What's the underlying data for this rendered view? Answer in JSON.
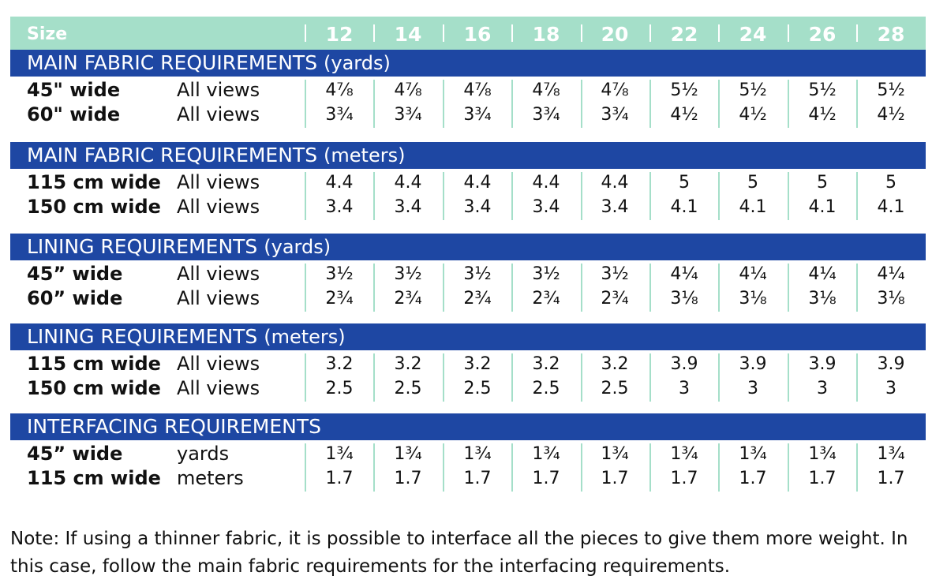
{
  "header": {
    "size_label": "Size",
    "sizes": [
      "12",
      "14",
      "16",
      "18",
      "20",
      "22",
      "24",
      "26",
      "28"
    ]
  },
  "sections": [
    {
      "title_main": "MAIN FABRIC REQUIREMENTS",
      "title_unit": "(yards)",
      "rows": [
        {
          "label": "45\" wide",
          "desc": "All views",
          "values": [
            "4⅞",
            "4⅞",
            "4⅞",
            "4⅞",
            "4⅞",
            "5½",
            "5½",
            "5½",
            "5½"
          ]
        },
        {
          "label": "60\" wide",
          "desc": "All views",
          "values": [
            "3¾",
            "3¾",
            "3¾",
            "3¾",
            "3¾",
            "4½",
            "4½",
            "4½",
            "4½"
          ]
        }
      ]
    },
    {
      "title_main": "MAIN FABRIC REQUIREMENTS",
      "title_unit": "(meters)",
      "rows": [
        {
          "label": "115 cm wide",
          "desc": "All views",
          "values": [
            "4.4",
            "4.4",
            "4.4",
            "4.4",
            "4.4",
            "5",
            "5",
            "5",
            "5"
          ]
        },
        {
          "label": "150 cm wide",
          "desc": "All views",
          "values": [
            "3.4",
            "3.4",
            "3.4",
            "3.4",
            "3.4",
            "4.1",
            "4.1",
            "4.1",
            "4.1"
          ]
        }
      ]
    },
    {
      "title_main": "LINING REQUIREMENTS",
      "title_unit": "(yards)",
      "rows": [
        {
          "label": "45” wide",
          "desc": "All views",
          "values": [
            "3½",
            "3½",
            "3½",
            "3½",
            "3½",
            "4¼",
            "4¼",
            "4¼",
            "4¼"
          ]
        },
        {
          "label": "60” wide",
          "desc": "All views",
          "values": [
            "2¾",
            "2¾",
            "2¾",
            "2¾",
            "2¾",
            "3⅛",
            "3⅛",
            "3⅛",
            "3⅛"
          ]
        }
      ]
    },
    {
      "title_main": "LINING REQUIREMENTS",
      "title_unit": "(meters)",
      "rows": [
        {
          "label": "115 cm wide",
          "desc": "All views",
          "values": [
            "3.2",
            "3.2",
            "3.2",
            "3.2",
            "3.2",
            "3.9",
            "3.9",
            "3.9",
            "3.9"
          ]
        },
        {
          "label": "150 cm wide",
          "desc": "All views",
          "values": [
            "2.5",
            "2.5",
            "2.5",
            "2.5",
            "2.5",
            "3",
            "3",
            "3",
            "3"
          ]
        }
      ]
    },
    {
      "title_main": "INTERFACING REQUIREMENTS",
      "title_unit": "",
      "rows": [
        {
          "label": "45” wide",
          "desc": "yards",
          "values": [
            "1¾",
            "1¾",
            "1¾",
            "1¾",
            "1¾",
            "1¾",
            "1¾",
            "1¾",
            "1¾"
          ]
        },
        {
          "label": "115 cm wide",
          "desc": "meters",
          "values": [
            "1.7",
            "1.7",
            "1.7",
            "1.7",
            "1.7",
            "1.7",
            "1.7",
            "1.7",
            "1.7"
          ]
        }
      ]
    }
  ],
  "note": "Note: If using a thinner fabric, it is possible to interface all the pieces to give them more weight. In this case, follow the main fabric requirements for the interfacing requirements.",
  "colors": {
    "header_mint": "#a5dfc9",
    "band_blue": "#1e47a3",
    "separator_mint": "#a5dfc9"
  }
}
